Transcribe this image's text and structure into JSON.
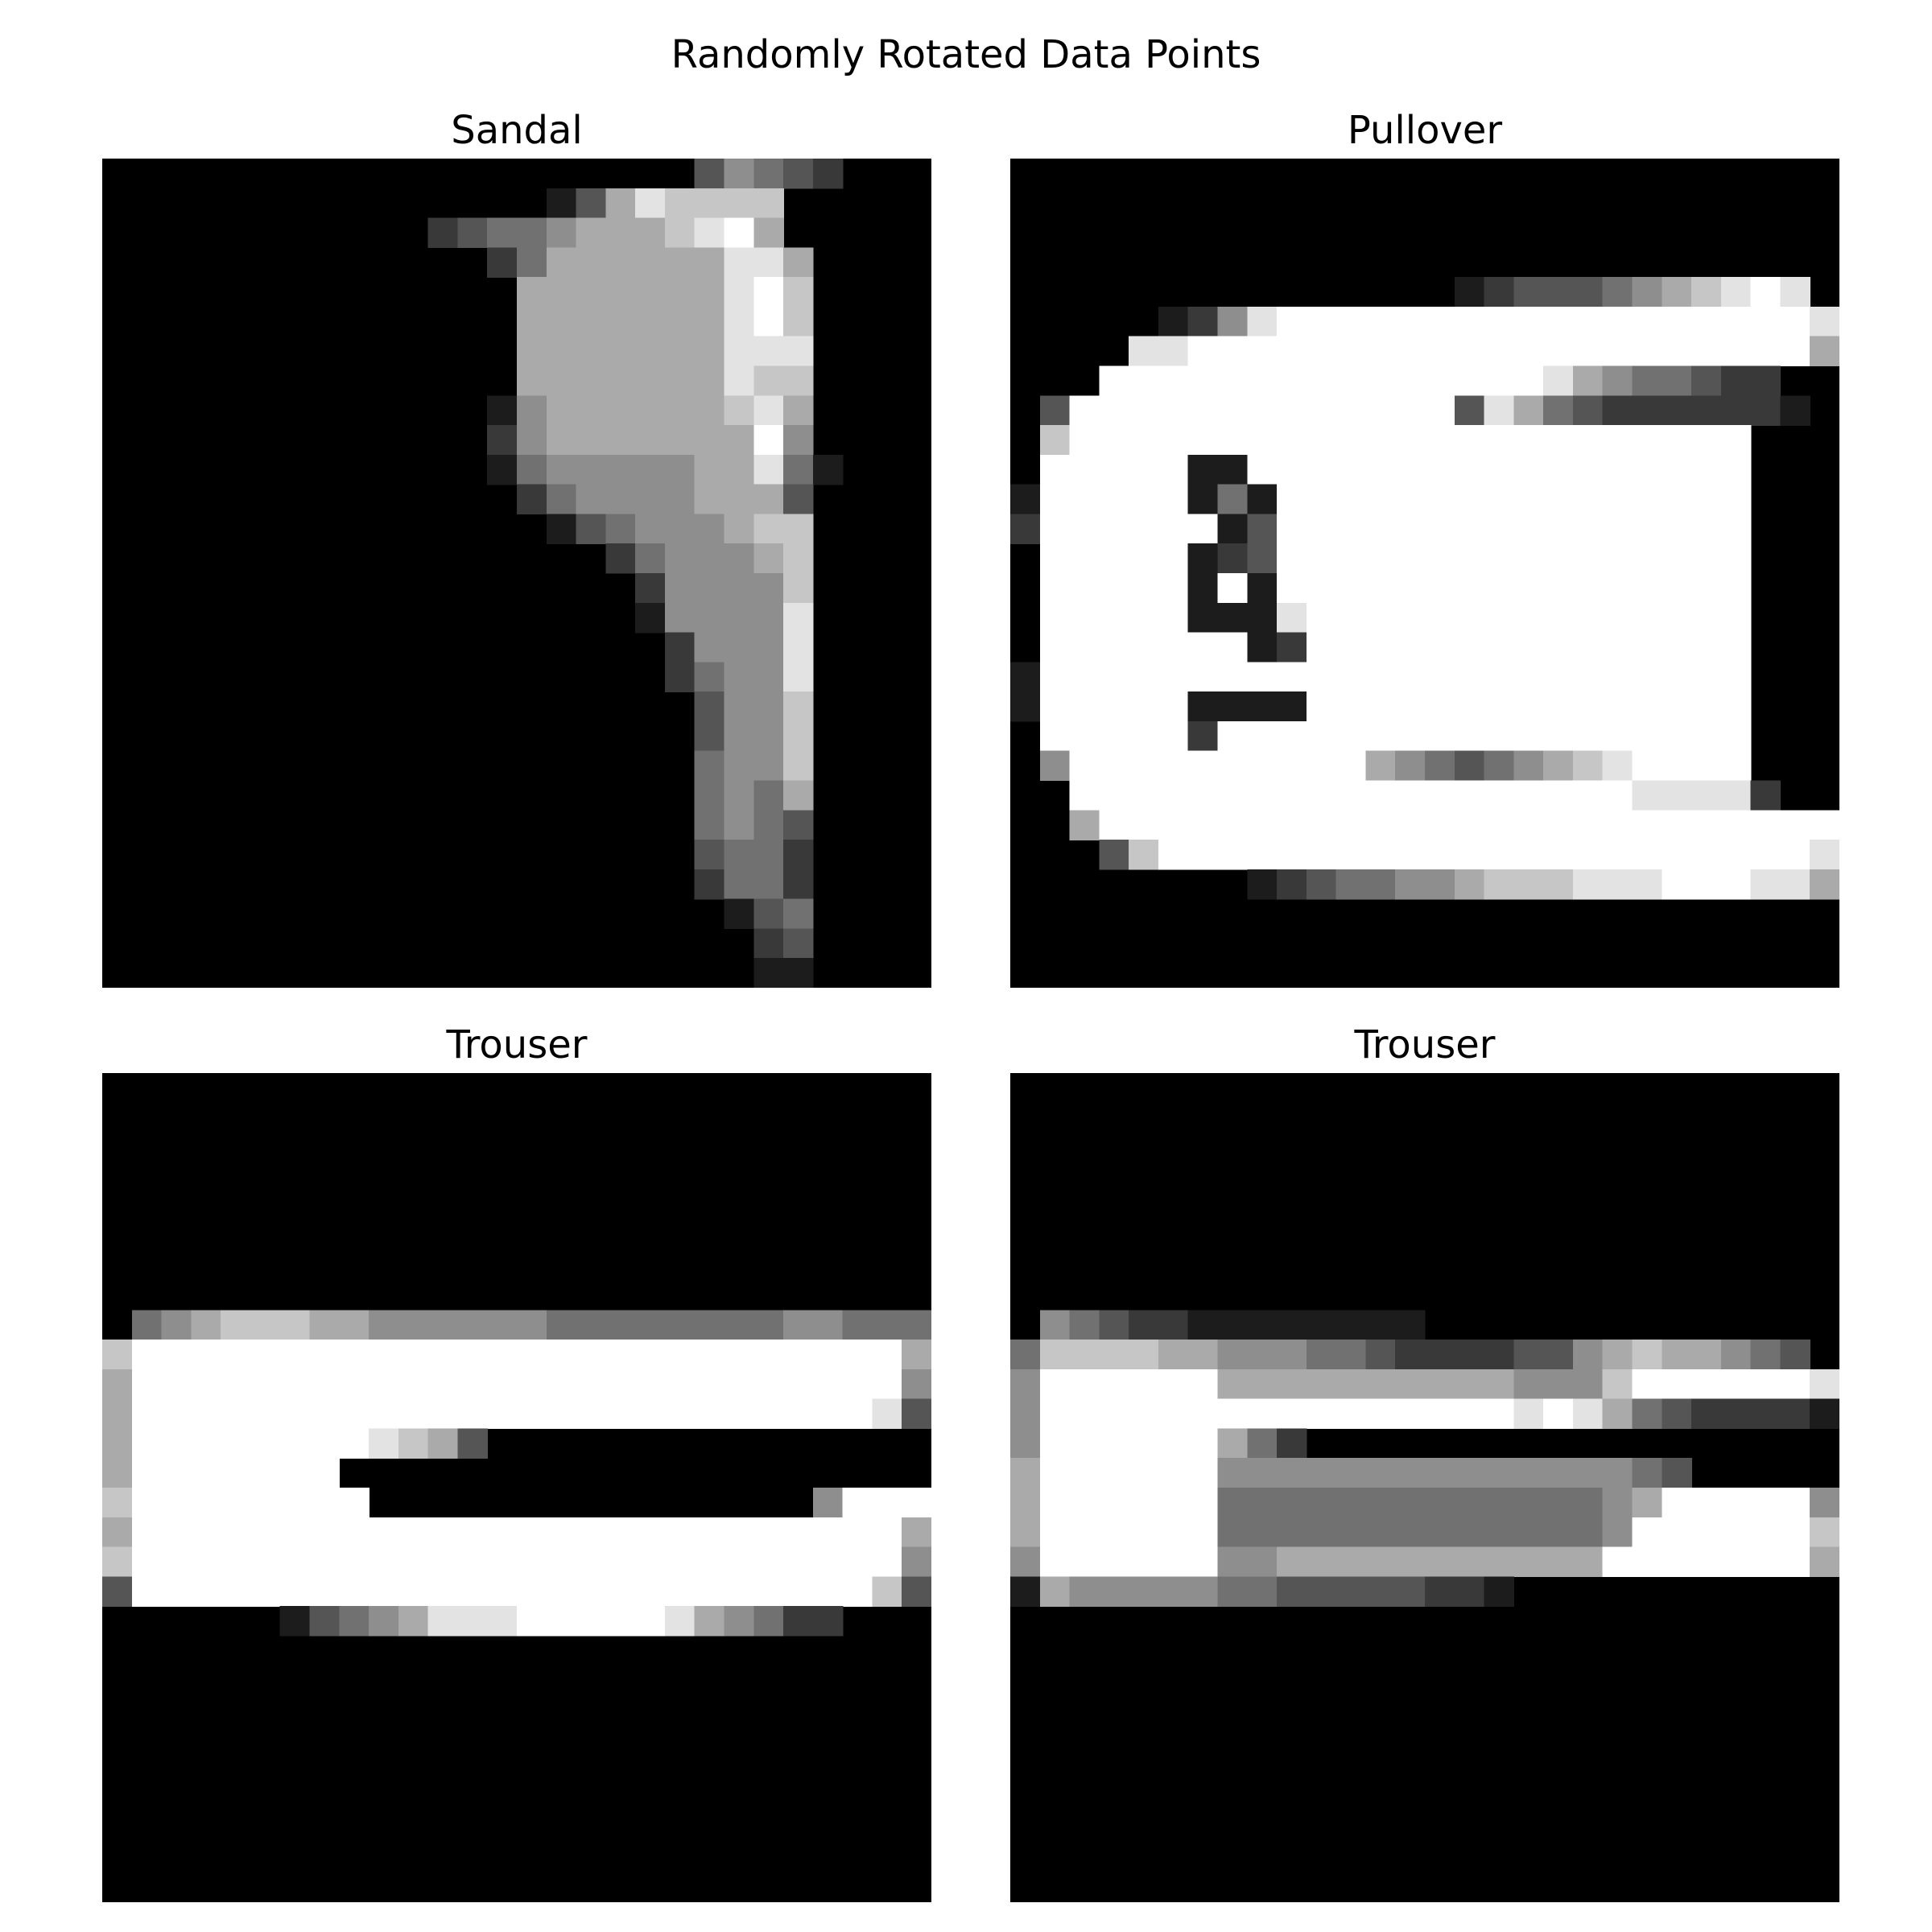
{
  "figure": {
    "title": "Randomly Rotated Data Points",
    "colormap": "gray",
    "panels": [
      {
        "title": "Sandal",
        "image": [
          "0000000000000000000035432000",
          "0000000000000001368777700000",
          "0000000000023445666789600000",
          "0000000000000246666668860000",
          "0000000000000066666668970000",
          "0000000000000066666668970000",
          "0000000000000066666668880000",
          "0000000000000066666668770000",
          "0000000000000156666667860000",
          "0000000000000256666666950000",
          "0000000000000145555566841000",
          "0000000000000024555566630000",
          "0000000000000001345556770000",
          "0000000000000000024555670000",
          "0000000000000000002555570000",
          "0000000000000000001555580000",
          "0000000000000000000255580000",
          "0000000000000000000245580000",
          "0000000000000000000035570000",
          "0000000000000000000035570000",
          "0000000000000000000045570000",
          "0000000000000000000045460000",
          "0000000000000000000045430000",
          "0000000000000000000034420000",
          "0000000000000000000024420000",
          "0000000000000000000001340000",
          "0000000000000000000000230000",
          "0000000000000000000000110000"
        ]
      },
      {
        "title": "Pullover",
        "image": [
          "0000000000000000000000000000",
          "0000000000000000000000000000",
          "0000000000000000000000000000",
          "0000000000000000000000000000",
          "0000000000000001233345678980",
          "0000012589999999999999999998",
          "0000889999999999999999999996",
          "0009999999999999998654432200",
          "0399999999999993864322222210",
          "0799999999999999999999999000",
          "0999991199999999999999999000",
          "1999991419999999999999999000",
          "2999999139999999999999999000",
          "0999991239999999999999999000",
          "0999991919999999999999999000",
          "0999991118999999999999999000",
          "0999999912999999999999999000",
          "1999999999999999999999999000",
          "1999991111999999999999999000",
          "0999992999999999999999999000",
          "0599999999996543456789999000",
          "0099999999999999999998888200",
          "0069999999999999999999999999",
          "0003799999999999999999999998",
          "0000000012344556777888999886",
          "0000000000000000000000000000",
          "0000000000000000000000000000",
          "0000000000000000000000000000"
        ]
      },
      {
        "title": "Trouser",
        "image": [
          "0000000000000000000000000000",
          "0000000000000000000000000000",
          "0000000000000000000000000000",
          "0000000000000000000000000000",
          "0000000000000000000000000000",
          "0000000000000000000000000000",
          "0000000000000000000000000000",
          "0000000000000000000000000000",
          "0456777665555554444444455444",
          "7999999999999999999999999996",
          "6999999999999999999999999995",
          "6999999999999999999999999983",
          "6999999998763000000000000000",
          "6999999900000000000000000000",
          "7999999990000000000000005999",
          "6999999999999999999999999996",
          "7999999999999999999999999995",
          "3999999999999999999999999973",
          "0000001345688899999865422000",
          "0000000000000000000000000000",
          "0000000000000000000000000000",
          "0000000000000000000000000000",
          "0000000000000000000000000000",
          "0000000000000000000000000000",
          "0000000000000000000000000000",
          "0000000000000000000000000000",
          "0000000000000000000000000000",
          "0000000000000000000000000000"
        ]
      },
      {
        "title": "Trouser",
        "image": [
          "0000000000000000000000000000",
          "0000000000000000000000000000",
          "0000000000000000000000000000",
          "0000000000000000000000000000",
          "0000000000000000000000000000",
          "0000000000000000000000000000",
          "0000000000000000000000000000",
          "0000000000000000000000000000",
          "0543221111111100000000000000",
          "4777766555443222233567665430",
          "5999999666666666655579999998",
          "5999999999999999989864322221",
          "5999999642000000000000000000",
          "6999999555555555555554300000",
          "6999999444444444444456999995",
          "6999999444444444444459999997",
          "5999999556666666666699999996",
          "1655555443333322100000000000",
          "0000000000000000000000000000",
          "0000000000000000000000000000",
          "0000000000000000000000000000",
          "0000000000000000000000000000",
          "0000000000000000000000000000",
          "0000000000000000000000000000",
          "0000000000000000000000000000",
          "0000000000000000000000000000",
          "0000000000000000000000000000",
          "0000000000000000000000000000"
        ]
      }
    ]
  }
}
